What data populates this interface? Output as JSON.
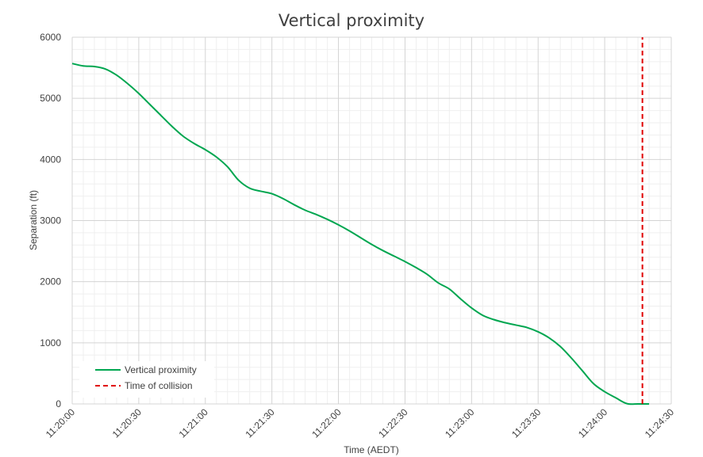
{
  "chart_data": {
    "type": "line",
    "title": "Vertical proximity",
    "xlabel": "Time (AEDT)",
    "ylabel": "Separation (ft)",
    "xlim": [
      "11:20:00",
      "11:24:30"
    ],
    "ylim": [
      0,
      6000
    ],
    "x_ticks": [
      "11:20:00",
      "11:20:30",
      "11:21:00",
      "11:21:30",
      "11:22:00",
      "11:22:30",
      "11:23:00",
      "11:23:30",
      "11:24:00",
      "11:24:30"
    ],
    "y_ticks": [
      "0",
      "1000",
      "2000",
      "3000",
      "4000",
      "5000",
      "6000"
    ],
    "grid": true,
    "legend_position": "bottom-left",
    "series": [
      {
        "name": "Vertical proximity",
        "color": "#00a650",
        "style": "solid",
        "x": [
          "11:20:00",
          "11:20:05",
          "11:20:10",
          "11:20:15",
          "11:20:20",
          "11:20:25",
          "11:20:30",
          "11:20:35",
          "11:20:40",
          "11:20:45",
          "11:20:50",
          "11:20:55",
          "11:21:00",
          "11:21:05",
          "11:21:10",
          "11:21:15",
          "11:21:20",
          "11:21:25",
          "11:21:30",
          "11:21:35",
          "11:21:40",
          "11:21:45",
          "11:21:50",
          "11:21:55",
          "11:22:00",
          "11:22:05",
          "11:22:10",
          "11:22:15",
          "11:22:20",
          "11:22:25",
          "11:22:30",
          "11:22:35",
          "11:22:40",
          "11:22:45",
          "11:22:50",
          "11:22:55",
          "11:23:00",
          "11:23:05",
          "11:23:10",
          "11:23:15",
          "11:23:20",
          "11:23:25",
          "11:23:30",
          "11:23:35",
          "11:23:40",
          "11:23:45",
          "11:23:50",
          "11:23:55",
          "11:24:00",
          "11:24:05",
          "11:24:10",
          "11:24:15",
          "11:24:20"
        ],
        "y": [
          5570,
          5530,
          5520,
          5480,
          5380,
          5240,
          5080,
          4900,
          4720,
          4540,
          4380,
          4260,
          4160,
          4040,
          3880,
          3660,
          3530,
          3480,
          3440,
          3360,
          3260,
          3170,
          3100,
          3020,
          2930,
          2830,
          2720,
          2610,
          2510,
          2420,
          2330,
          2230,
          2120,
          1980,
          1880,
          1720,
          1570,
          1450,
          1380,
          1330,
          1290,
          1250,
          1180,
          1080,
          940,
          750,
          540,
          330,
          200,
          100,
          5,
          0,
          0
        ]
      },
      {
        "name": "Time of collision",
        "color": "#e00000",
        "style": "dashed",
        "x": [
          "11:24:17",
          "11:24:17"
        ],
        "y": [
          0,
          6000
        ]
      }
    ]
  }
}
